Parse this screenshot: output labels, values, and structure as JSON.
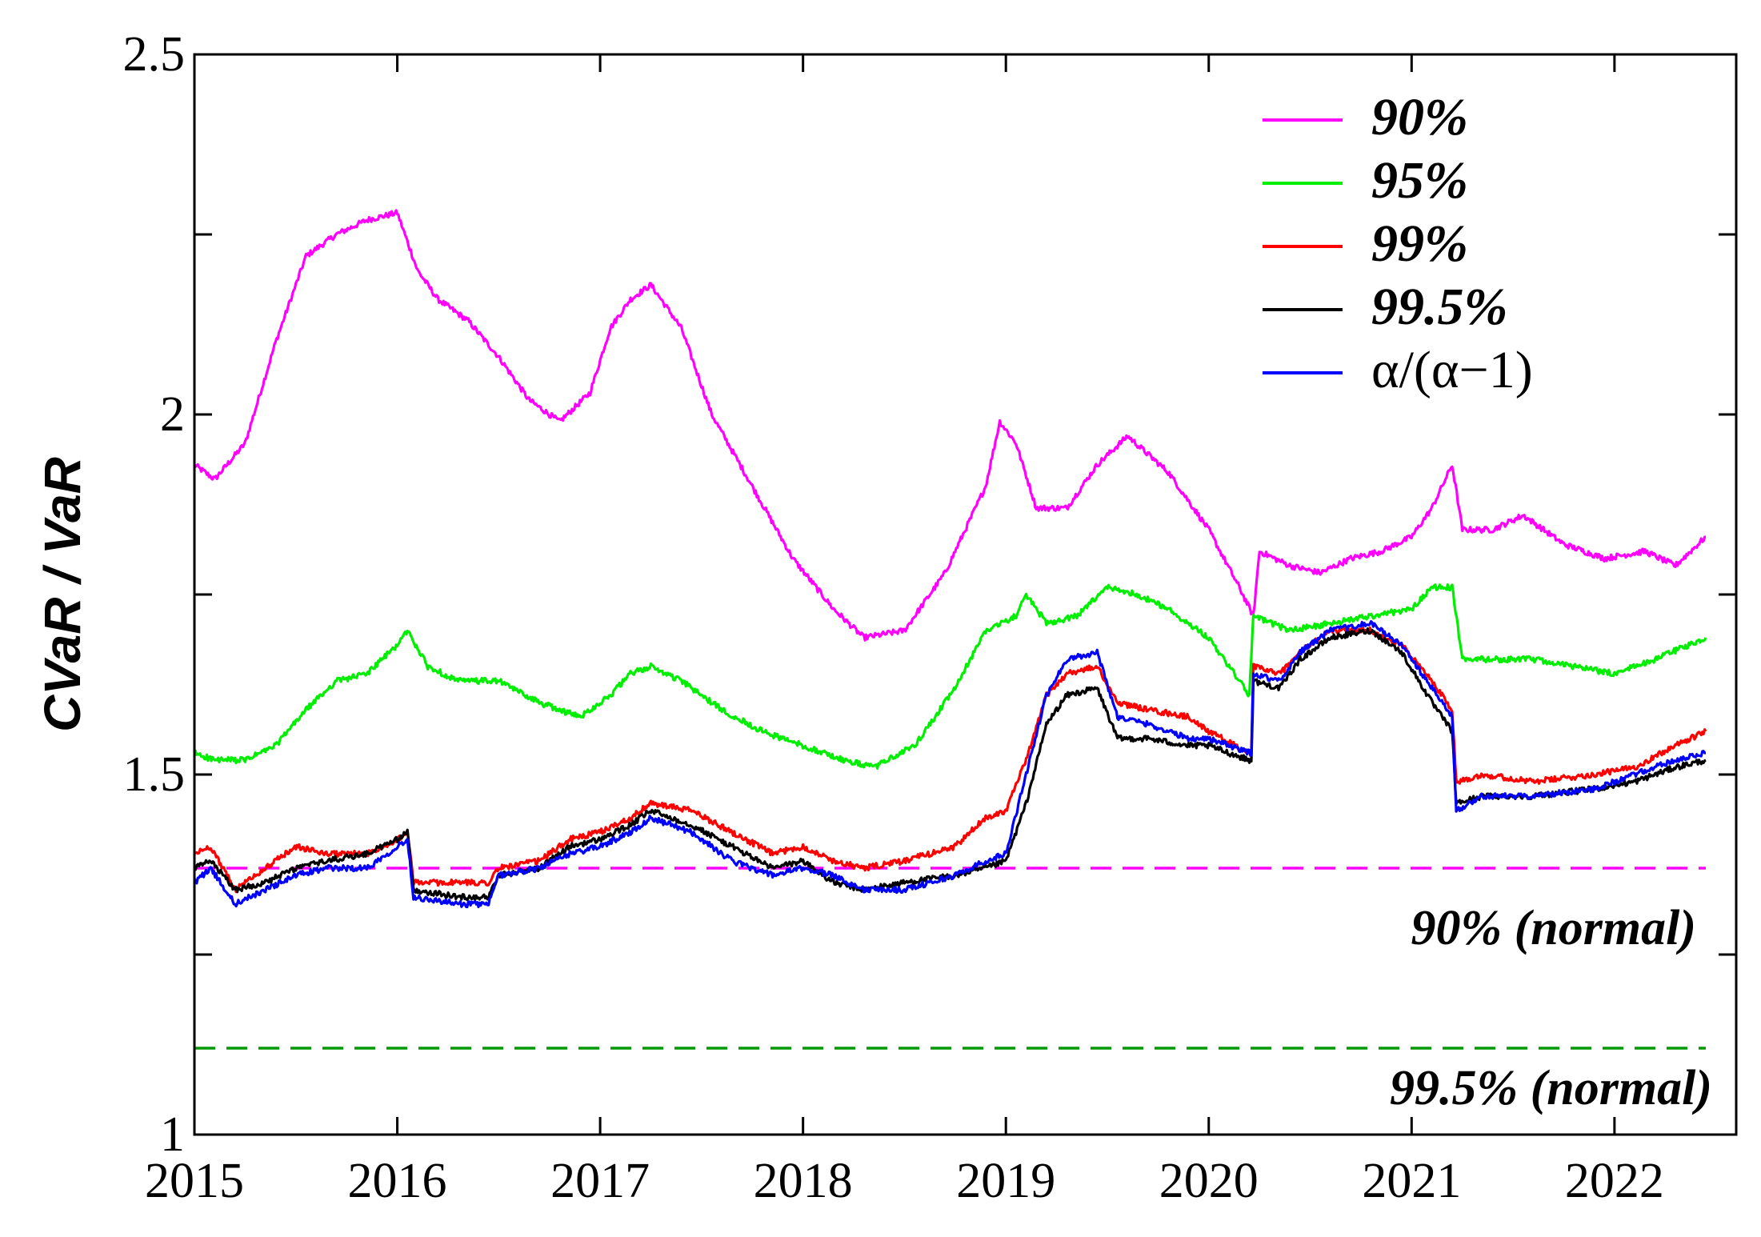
{
  "chart_data": {
    "type": "line",
    "title": "",
    "xlabel": "",
    "ylabel": "CVaR / VaR",
    "xlim": [
      2015,
      2022.6
    ],
    "ylim": [
      1,
      2.5
    ],
    "xticks": [
      2015,
      2016,
      2017,
      2018,
      2019,
      2020,
      2021,
      2022
    ],
    "xtick_labels": [
      "2015",
      "2016",
      "2017",
      "2018",
      "2019",
      "2020",
      "2021",
      "2022"
    ],
    "yticks": [
      1,
      1.25,
      1.5,
      1.75,
      2,
      2.25,
      2.5
    ],
    "ytick_labels": [
      "1",
      "",
      "1.5",
      "",
      "2",
      "",
      "2.5"
    ],
    "legend_position": "top-right",
    "grid": false,
    "series": [
      {
        "name": "90%",
        "color": "#ff00ff",
        "x": [
          2015.0,
          2015.1,
          2015.25,
          2015.4,
          2015.55,
          2015.7,
          2015.85,
          2016.0,
          2016.1,
          2016.2,
          2016.35,
          2016.5,
          2016.65,
          2016.8,
          2016.95,
          2017.05,
          2017.15,
          2017.25,
          2017.4,
          2017.55,
          2017.75,
          2017.95,
          2018.15,
          2018.3,
          2018.5,
          2018.7,
          2018.9,
          2018.97,
          2019.05,
          2019.15,
          2019.3,
          2019.45,
          2019.6,
          2019.8,
          2020.0,
          2020.15,
          2020.22,
          2020.25,
          2020.4,
          2020.55,
          2020.7,
          2020.85,
          2021.0,
          2021.1,
          2021.2,
          2021.25,
          2021.4,
          2021.55,
          2021.75,
          2021.95,
          2022.15,
          2022.3,
          2022.45
        ],
        "values": [
          1.93,
          1.91,
          1.96,
          2.1,
          2.22,
          2.25,
          2.27,
          2.28,
          2.2,
          2.16,
          2.13,
          2.08,
          2.02,
          1.99,
          2.03,
          2.12,
          2.16,
          2.18,
          2.12,
          2.0,
          1.9,
          1.8,
          1.73,
          1.69,
          1.7,
          1.78,
          1.9,
          1.99,
          1.96,
          1.87,
          1.87,
          1.93,
          1.97,
          1.92,
          1.84,
          1.76,
          1.72,
          1.81,
          1.79,
          1.78,
          1.8,
          1.81,
          1.83,
          1.87,
          1.93,
          1.84,
          1.84,
          1.86,
          1.82,
          1.8,
          1.81,
          1.79,
          1.83
        ]
      },
      {
        "name": "95%",
        "color": "#00ee00",
        "x": [
          2015.0,
          2015.1,
          2015.25,
          2015.4,
          2015.55,
          2015.7,
          2015.85,
          2016.0,
          2016.05,
          2016.15,
          2016.3,
          2016.5,
          2016.7,
          2016.9,
          2017.05,
          2017.15,
          2017.25,
          2017.4,
          2017.6,
          2017.8,
          2018.0,
          2018.2,
          2018.35,
          2018.55,
          2018.75,
          2018.9,
          2019.05,
          2019.1,
          2019.2,
          2019.35,
          2019.5,
          2019.65,
          2019.8,
          2020.0,
          2020.15,
          2020.2,
          2020.22,
          2020.4,
          2020.6,
          2020.8,
          2021.0,
          2021.1,
          2021.2,
          2021.25,
          2021.4,
          2021.6,
          2021.8,
          2022.0,
          2022.2,
          2022.45
        ],
        "values": [
          1.53,
          1.52,
          1.52,
          1.54,
          1.59,
          1.63,
          1.64,
          1.68,
          1.7,
          1.65,
          1.63,
          1.63,
          1.6,
          1.58,
          1.61,
          1.64,
          1.65,
          1.63,
          1.59,
          1.56,
          1.54,
          1.52,
          1.51,
          1.54,
          1.62,
          1.7,
          1.72,
          1.75,
          1.71,
          1.72,
          1.76,
          1.75,
          1.73,
          1.69,
          1.63,
          1.61,
          1.72,
          1.7,
          1.71,
          1.72,
          1.73,
          1.76,
          1.76,
          1.66,
          1.66,
          1.66,
          1.65,
          1.64,
          1.66,
          1.69
        ]
      },
      {
        "name": "99%",
        "color": "#ff0000",
        "x": [
          2015.0,
          2015.08,
          2015.2,
          2015.35,
          2015.5,
          2015.65,
          2015.85,
          2016.0,
          2016.05,
          2016.08,
          2016.3,
          2016.45,
          2016.5,
          2016.7,
          2016.85,
          2017.0,
          2017.15,
          2017.25,
          2017.45,
          2017.65,
          2017.85,
          2018.0,
          2018.15,
          2018.3,
          2018.5,
          2018.75,
          2018.9,
          2019.0,
          2019.1,
          2019.2,
          2019.3,
          2019.45,
          2019.55,
          2019.7,
          2019.9,
          2020.0,
          2020.2,
          2020.21,
          2020.22,
          2020.35,
          2020.45,
          2020.6,
          2020.8,
          2020.95,
          2021.1,
          2021.2,
          2021.22,
          2021.35,
          2021.6,
          2021.9,
          2022.1,
          2022.3,
          2022.45
        ],
        "values": [
          1.39,
          1.4,
          1.34,
          1.37,
          1.4,
          1.39,
          1.39,
          1.41,
          1.42,
          1.35,
          1.35,
          1.35,
          1.37,
          1.38,
          1.41,
          1.42,
          1.44,
          1.46,
          1.45,
          1.42,
          1.39,
          1.4,
          1.38,
          1.37,
          1.38,
          1.4,
          1.44,
          1.45,
          1.52,
          1.61,
          1.64,
          1.65,
          1.6,
          1.59,
          1.58,
          1.56,
          1.53,
          1.53,
          1.65,
          1.64,
          1.67,
          1.7,
          1.7,
          1.68,
          1.63,
          1.59,
          1.49,
          1.5,
          1.49,
          1.5,
          1.51,
          1.54,
          1.56
        ]
      },
      {
        "name": "99.5%",
        "color": "#000000",
        "x": [
          2015.0,
          2015.08,
          2015.2,
          2015.35,
          2015.5,
          2015.65,
          2015.85,
          2016.0,
          2016.05,
          2016.08,
          2016.3,
          2016.45,
          2016.5,
          2016.7,
          2016.85,
          2017.0,
          2017.15,
          2017.25,
          2017.45,
          2017.65,
          2017.85,
          2018.0,
          2018.15,
          2018.3,
          2018.5,
          2018.75,
          2018.9,
          2019.0,
          2019.1,
          2019.2,
          2019.3,
          2019.45,
          2019.55,
          2019.7,
          2019.9,
          2020.0,
          2020.2,
          2020.21,
          2020.22,
          2020.35,
          2020.45,
          2020.6,
          2020.8,
          2020.95,
          2021.1,
          2021.2,
          2021.22,
          2021.35,
          2021.6,
          2021.9,
          2022.1,
          2022.3,
          2022.45
        ],
        "values": [
          1.37,
          1.38,
          1.34,
          1.35,
          1.37,
          1.38,
          1.39,
          1.41,
          1.42,
          1.34,
          1.33,
          1.33,
          1.36,
          1.37,
          1.4,
          1.41,
          1.43,
          1.45,
          1.43,
          1.4,
          1.37,
          1.38,
          1.35,
          1.34,
          1.35,
          1.36,
          1.37,
          1.38,
          1.46,
          1.57,
          1.61,
          1.62,
          1.55,
          1.55,
          1.54,
          1.54,
          1.52,
          1.52,
          1.63,
          1.62,
          1.66,
          1.69,
          1.7,
          1.67,
          1.6,
          1.56,
          1.46,
          1.47,
          1.47,
          1.48,
          1.49,
          1.51,
          1.52
        ]
      },
      {
        "name": "α/(α−1)",
        "color": "#0000ff",
        "x": [
          2015.0,
          2015.08,
          2015.2,
          2015.35,
          2015.5,
          2015.65,
          2015.85,
          2016.0,
          2016.05,
          2016.08,
          2016.3,
          2016.45,
          2016.5,
          2016.7,
          2016.85,
          2017.0,
          2017.15,
          2017.25,
          2017.45,
          2017.65,
          2017.85,
          2018.0,
          2018.15,
          2018.3,
          2018.5,
          2018.75,
          2018.9,
          2019.0,
          2019.1,
          2019.2,
          2019.3,
          2019.45,
          2019.55,
          2019.7,
          2019.9,
          2020.0,
          2020.2,
          2020.21,
          2020.22,
          2020.35,
          2020.45,
          2020.6,
          2020.8,
          2020.95,
          2021.1,
          2021.2,
          2021.22,
          2021.35,
          2021.6,
          2021.9,
          2022.1,
          2022.3,
          2022.45
        ],
        "values": [
          1.35,
          1.37,
          1.32,
          1.34,
          1.36,
          1.37,
          1.37,
          1.4,
          1.41,
          1.33,
          1.32,
          1.32,
          1.36,
          1.37,
          1.39,
          1.4,
          1.42,
          1.44,
          1.42,
          1.38,
          1.36,
          1.37,
          1.36,
          1.34,
          1.34,
          1.36,
          1.38,
          1.39,
          1.5,
          1.61,
          1.66,
          1.67,
          1.58,
          1.57,
          1.55,
          1.55,
          1.53,
          1.53,
          1.64,
          1.63,
          1.67,
          1.7,
          1.71,
          1.68,
          1.62,
          1.58,
          1.45,
          1.47,
          1.47,
          1.48,
          1.5,
          1.52,
          1.53
        ]
      }
    ],
    "reference_lines": [
      {
        "name": "90% (normal)",
        "value": 1.37,
        "color": "#ff00ff",
        "style": "dashed"
      },
      {
        "name": "99.5% (normal)",
        "value": 1.12,
        "color": "#009900",
        "style": "dashed"
      }
    ]
  }
}
